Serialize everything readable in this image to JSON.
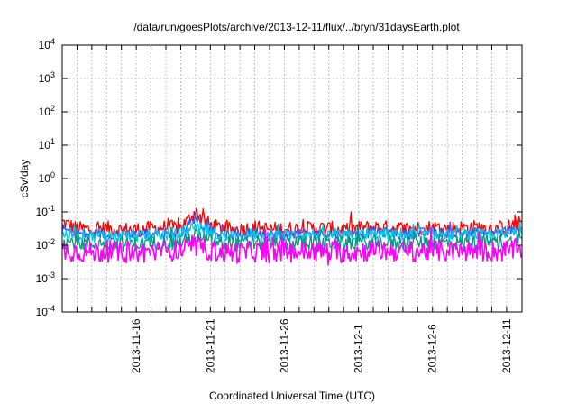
{
  "chart_data": {
    "type": "line",
    "title": "/data/run/goesPlots/archive/2013-12-11/flux/../bryn/31daysEarth.plot",
    "xlabel": "Coordinated Universal Time (UTC)",
    "ylabel": "cSv/day",
    "yscale": "log",
    "ylim": [
      0.0001,
      10000
    ],
    "xlim": [
      "2013-11-11T00:00",
      "2013-12-12T01:00"
    ],
    "grid": true,
    "y_ticks": [
      {
        "base": "10",
        "exp": "-4"
      },
      {
        "base": "10",
        "exp": "-3"
      },
      {
        "base": "10",
        "exp": "-2"
      },
      {
        "base": "10",
        "exp": "-1"
      },
      {
        "base": "10",
        "exp": "0"
      },
      {
        "base": "10",
        "exp": "1"
      },
      {
        "base": "10",
        "exp": "2"
      },
      {
        "base": "10",
        "exp": "3"
      },
      {
        "base": "10",
        "exp": "4"
      }
    ],
    "x_tick_dates": [
      "2013-11-12",
      "2013-11-13",
      "2013-11-14",
      "2013-11-15",
      "2013-11-16",
      "2013-11-17",
      "2013-11-18",
      "2013-11-19",
      "2013-11-20",
      "2013-11-21",
      "2013-11-22",
      "2013-11-23",
      "2013-11-24",
      "2013-11-25",
      "2013-11-26",
      "2013-11-27",
      "2013-11-28",
      "2013-11-29",
      "2013-11-30",
      "2013-12-01",
      "2013-12-02",
      "2013-12-03",
      "2013-12-04",
      "2013-12-05",
      "2013-12-06",
      "2013-12-07",
      "2013-12-08",
      "2013-12-09",
      "2013-12-10",
      "2013-12-11"
    ],
    "x_labels": [
      {
        "date": "2013-11-16",
        "label": "2013-11-16"
      },
      {
        "date": "2013-11-21",
        "label": "2013-11-21"
      },
      {
        "date": "2013-11-26",
        "label": "2013-11-26"
      },
      {
        "date": "2013-12-01",
        "label": "2013-12-1"
      },
      {
        "date": "2013-12-06",
        "label": "2013-12-6"
      },
      {
        "date": "2013-12-11",
        "label": "2013-12-11"
      }
    ],
    "x": [
      "2013-11-11",
      "2013-11-12",
      "2013-11-13",
      "2013-11-14",
      "2013-11-15",
      "2013-11-16",
      "2013-11-17",
      "2013-11-18",
      "2013-11-19",
      "2013-11-20",
      "2013-11-21",
      "2013-11-22",
      "2013-11-23",
      "2013-11-24",
      "2013-11-25",
      "2013-11-26",
      "2013-11-27",
      "2013-11-28",
      "2013-11-29",
      "2013-11-30",
      "2013-12-01",
      "2013-12-02",
      "2013-12-03",
      "2013-12-04",
      "2013-12-05",
      "2013-12-06",
      "2013-12-07",
      "2013-12-08",
      "2013-12-09",
      "2013-12-10",
      "2013-12-11",
      "2013-12-12"
    ],
    "series": [
      {
        "color": "#ff0000",
        "values": [
          0.05,
          0.032,
          0.03,
          0.033,
          0.03,
          0.03,
          0.032,
          0.035,
          0.034,
          0.1,
          0.04,
          0.03,
          0.03,
          0.035,
          0.03,
          0.032,
          0.031,
          0.033,
          0.032,
          0.03,
          0.033,
          0.035,
          0.034,
          0.032,
          0.033,
          0.035,
          0.032,
          0.034,
          0.035,
          0.033,
          0.034,
          0.05
        ]
      },
      {
        "color": "#2a5cff",
        "values": [
          0.03,
          0.022,
          0.021,
          0.022,
          0.021,
          0.02,
          0.023,
          0.024,
          0.024,
          0.07,
          0.027,
          0.02,
          0.021,
          0.024,
          0.021,
          0.022,
          0.022,
          0.023,
          0.022,
          0.021,
          0.022,
          0.024,
          0.024,
          0.022,
          0.023,
          0.024,
          0.022,
          0.023,
          0.024,
          0.023,
          0.024,
          0.035
        ]
      },
      {
        "color": "#00c8e8",
        "values": [
          0.022,
          0.02,
          0.019,
          0.02,
          0.019,
          0.019,
          0.02,
          0.021,
          0.021,
          0.04,
          0.023,
          0.019,
          0.019,
          0.021,
          0.019,
          0.02,
          0.02,
          0.021,
          0.02,
          0.019,
          0.02,
          0.021,
          0.021,
          0.02,
          0.021,
          0.021,
          0.02,
          0.021,
          0.021,
          0.02,
          0.021,
          0.026
        ]
      },
      {
        "color": "#009a80",
        "values": [
          0.013,
          0.012,
          0.011,
          0.012,
          0.011,
          0.011,
          0.012,
          0.012,
          0.012,
          0.02,
          0.013,
          0.011,
          0.011,
          0.012,
          0.011,
          0.012,
          0.012,
          0.012,
          0.012,
          0.011,
          0.012,
          0.012,
          0.012,
          0.012,
          0.012,
          0.012,
          0.012,
          0.012,
          0.012,
          0.012,
          0.012,
          0.014
        ]
      },
      {
        "color": "#ff00ff",
        "values": [
          0.007,
          0.0065,
          0.006,
          0.0065,
          0.006,
          0.006,
          0.0065,
          0.007,
          0.007,
          0.009,
          0.007,
          0.006,
          0.006,
          0.0065,
          0.006,
          0.0065,
          0.0065,
          0.0065,
          0.0065,
          0.006,
          0.0065,
          0.007,
          0.0068,
          0.0065,
          0.0066,
          0.007,
          0.0065,
          0.0067,
          0.0068,
          0.0066,
          0.0067,
          0.008
        ]
      }
    ]
  }
}
